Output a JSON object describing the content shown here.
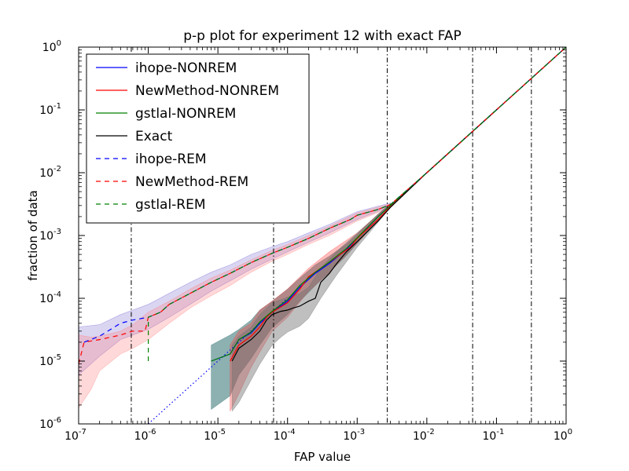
{
  "chart_data": {
    "type": "line",
    "title": "p-p plot for experiment 12 with exact FAP",
    "xlabel": "FAP value",
    "ylabel": "fraction of data",
    "xscale": "log",
    "yscale": "log",
    "xlim": [
      1e-07,
      1
    ],
    "ylim": [
      1e-06,
      1
    ],
    "x_ticks": [
      {
        "value": 1e-07,
        "base": "10",
        "exp": "-7"
      },
      {
        "value": 1e-06,
        "base": "10",
        "exp": "-6"
      },
      {
        "value": 1e-05,
        "base": "10",
        "exp": "-5"
      },
      {
        "value": 0.0001,
        "base": "10",
        "exp": "-4"
      },
      {
        "value": 0.001,
        "base": "10",
        "exp": "-3"
      },
      {
        "value": 0.01,
        "base": "10",
        "exp": "-2"
      },
      {
        "value": 0.1,
        "base": "10",
        "exp": "-1"
      },
      {
        "value": 1,
        "base": "10",
        "exp": "0"
      }
    ],
    "y_ticks": [
      {
        "value": 1e-06,
        "base": "10",
        "exp": "-6"
      },
      {
        "value": 1e-05,
        "base": "10",
        "exp": "-5"
      },
      {
        "value": 0.0001,
        "base": "10",
        "exp": "-4"
      },
      {
        "value": 0.001,
        "base": "10",
        "exp": "-3"
      },
      {
        "value": 0.01,
        "base": "10",
        "exp": "-2"
      },
      {
        "value": 0.1,
        "base": "10",
        "exp": "-1"
      },
      {
        "value": 1,
        "base": "10",
        "exp": "0"
      }
    ],
    "vertical_markers": [
      5.7e-07,
      6.3e-05,
      0.0027,
      0.0455,
      0.3173
    ],
    "legend_placement": "top-left",
    "series": [
      {
        "name": "ihope-NONREM",
        "color": "#0000ff",
        "dash": "solid",
        "x": [
          8e-06,
          1.5e-05,
          2e-05,
          3e-05,
          4e-05,
          6e-05,
          0.0001,
          0.00015,
          0.00025,
          0.0004,
          0.0007,
          0.001,
          0.002,
          0.003,
          0.01,
          0.1,
          1
        ],
        "y": [
          1e-05,
          1.3e-05,
          2.2e-05,
          2.8e-05,
          4e-05,
          6e-05,
          9e-05,
          0.00015,
          0.00025,
          0.00036,
          0.0006,
          0.0009,
          0.002,
          0.003,
          0.01,
          0.1,
          1
        ]
      },
      {
        "name": "NewMethod-NONREM",
        "color": "#ff0000",
        "dash": "solid",
        "x": [
          1.5e-05,
          2e-05,
          3e-05,
          4e-05,
          5e-05,
          6e-05,
          0.0001,
          0.00015,
          0.0002,
          0.0003,
          0.0005,
          0.0008,
          0.001,
          0.002,
          0.003,
          0.01,
          0.1,
          1
        ],
        "y": [
          1e-05,
          1.8e-05,
          2.5e-05,
          3.5e-05,
          5e-05,
          6e-05,
          8.5e-05,
          0.00014,
          0.00022,
          0.0003,
          0.00045,
          0.00065,
          0.0009,
          0.0018,
          0.0029,
          0.01,
          0.1,
          1
        ]
      },
      {
        "name": "gstlal-NONREM",
        "color": "#008000",
        "dash": "solid",
        "x": [
          8e-06,
          1.5e-05,
          2e-05,
          3e-05,
          4e-05,
          6e-05,
          0.0001,
          0.00015,
          0.00025,
          0.0004,
          0.0007,
          0.001,
          0.002,
          0.003,
          0.01,
          0.1,
          1
        ],
        "y": [
          1e-05,
          1.3e-05,
          2.2e-05,
          2.9e-05,
          4.2e-05,
          6.2e-05,
          9.5e-05,
          0.00016,
          0.00026,
          0.00038,
          0.00062,
          0.00092,
          0.002,
          0.003,
          0.01,
          0.1,
          1
        ]
      },
      {
        "name": "Exact",
        "color": "#000000",
        "dash": "solid",
        "x": [
          1.6e-05,
          2e-05,
          3e-05,
          4e-05,
          5e-05,
          6e-05,
          8e-05,
          0.0001,
          0.00012,
          0.00015,
          0.0002,
          0.00025,
          0.0003,
          0.0004,
          0.0005,
          0.0007,
          0.001,
          0.002,
          0.003,
          0.01,
          0.1,
          1
        ],
        "y": [
          1e-05,
          1.6e-05,
          2.2e-05,
          3e-05,
          4.5e-05,
          5.5e-05,
          6.2e-05,
          6.5e-05,
          7e-05,
          7.5e-05,
          9e-05,
          0.0001,
          0.00018,
          0.00025,
          0.00035,
          0.00055,
          0.0008,
          0.0017,
          0.0028,
          0.01,
          0.1,
          1
        ]
      },
      {
        "name": "ihope-REM",
        "color": "#0000ff",
        "dash": "dashed",
        "x": [
          1.2e-07,
          2e-07,
          4e-07,
          6e-07,
          1e-06,
          1.5e-06,
          2e-06,
          4e-06,
          8e-06,
          1.5e-05,
          3e-05,
          6e-05,
          0.0001,
          0.0002,
          0.0004,
          0.0008,
          0.001,
          0.002,
          0.003,
          0.01,
          0.1,
          1
        ],
        "y": [
          2e-05,
          2.5e-05,
          4e-05,
          4.5e-05,
          5e-05,
          6e-05,
          8e-05,
          0.00012,
          0.00018,
          0.00025,
          0.00037,
          0.00052,
          0.00065,
          0.0009,
          0.0013,
          0.0018,
          0.0021,
          0.0026,
          0.0031,
          0.01,
          0.1,
          1
        ]
      },
      {
        "name": "NewMethod-REM",
        "color": "#ff0000",
        "dash": "dashed",
        "x": [
          1e-07,
          1.2e-07,
          2e-07,
          4e-07,
          6e-07,
          9e-07,
          1e-06,
          1.5e-06,
          2e-06,
          4e-06,
          8e-06,
          1.5e-05,
          3e-05,
          6e-05,
          0.0001,
          0.0002,
          0.0004,
          0.0008,
          0.001,
          0.002,
          0.003,
          0.01,
          0.1,
          1
        ],
        "y": [
          9e-06,
          2e-05,
          2.2e-05,
          2.6e-05,
          3e-05,
          3e-05,
          5e-05,
          6e-05,
          8e-05,
          0.00012,
          0.00018,
          0.00025,
          0.00037,
          0.00052,
          0.00065,
          0.0009,
          0.0013,
          0.0018,
          0.0021,
          0.0026,
          0.0031,
          0.01,
          0.1,
          1
        ]
      },
      {
        "name": "gstlal-REM",
        "color": "#008000",
        "dash": "dashed",
        "x": [
          1e-06,
          1e-06,
          1.5e-06,
          2e-06,
          4e-06,
          8e-06,
          1.5e-05,
          3e-05,
          6e-05,
          0.0001,
          0.0002,
          0.0004,
          0.0008,
          0.001,
          0.002,
          0.003,
          0.01,
          0.1,
          1
        ],
        "y": [
          1e-05,
          5e-05,
          6e-05,
          8e-05,
          0.00012,
          0.00018,
          0.00025,
          0.00037,
          0.00052,
          0.00065,
          0.0009,
          0.0013,
          0.0018,
          0.0021,
          0.0026,
          0.0031,
          0.01,
          0.1,
          1
        ]
      }
    ],
    "unlabeled_series": [
      {
        "color": "#0000ff",
        "dash": "dotted",
        "x": [
          1e-06,
          2e-06,
          5e-06,
          1e-05,
          2e-05,
          5e-05,
          0.0001
        ],
        "y": [
          1e-06,
          2e-06,
          5e-06,
          1e-05,
          2e-05,
          5e-05,
          0.0001
        ]
      }
    ],
    "bands": [
      {
        "color": "#6a5acd",
        "opacity": 0.25,
        "x": [
          1e-07,
          2e-07,
          4e-07,
          6e-07,
          1e-06,
          2e-06,
          4e-06,
          8e-06,
          1.5e-05,
          3e-05,
          6e-05,
          0.0001,
          0.0002,
          0.0004,
          0.001,
          0.003
        ],
        "upper": [
          3.5e-05,
          3.8e-05,
          5.5e-05,
          6.5e-05,
          8e-05,
          0.00012,
          0.00018,
          0.00026,
          0.00034,
          0.0005,
          0.00066,
          0.0008,
          0.0011,
          0.0015,
          0.0024,
          0.0033
        ],
        "lower": [
          6e-06,
          1.2e-05,
          2.2e-05,
          2.6e-05,
          3.2e-05,
          5e-05,
          8e-05,
          0.00013,
          0.00019,
          0.00029,
          0.00042,
          0.00055,
          0.00078,
          0.0011,
          0.0018,
          0.0029
        ]
      },
      {
        "color": "#ff8080",
        "opacity": 0.3,
        "x": [
          1e-07,
          1.5e-07,
          2e-07,
          4e-07,
          6e-07,
          1e-06,
          2e-06,
          4e-06,
          8e-06,
          1.5e-05,
          3e-05,
          6e-05,
          0.0001,
          0.0002,
          0.0004,
          0.001,
          0.003
        ],
        "upper": [
          2.6e-05,
          2.4e-05,
          2.5e-05,
          3e-05,
          3.8e-05,
          6e-05,
          9e-05,
          0.00014,
          0.00021,
          0.00028,
          0.00041,
          0.00058,
          0.00072,
          0.001,
          0.0014,
          0.0023,
          0.0032
        ],
        "lower": [
          1.8e-06,
          3.5e-06,
          7e-06,
          1.3e-05,
          1.6e-05,
          2.2e-05,
          4e-05,
          7e-05,
          0.00011,
          0.00016,
          0.00026,
          0.00039,
          0.0005,
          0.00072,
          0.001,
          0.0017,
          0.0028
        ]
      },
      {
        "color": "#2f6f6f",
        "opacity": 0.55,
        "x": [
          8e-06,
          1.5e-05,
          2e-05,
          3e-05,
          4e-05,
          6e-05,
          0.0001,
          0.00015,
          0.00025,
          0.0004,
          0.0007,
          0.001,
          0.002,
          0.003
        ],
        "upper": [
          1.8e-05,
          2.6e-05,
          3.2e-05,
          4.5e-05,
          6.5e-05,
          9e-05,
          0.00014,
          0.00021,
          0.00034,
          0.00047,
          0.00073,
          0.00105,
          0.0022,
          0.0032
        ],
        "lower": [
          1.7e-06,
          2.8e-06,
          6e-06,
          1.1e-05,
          1.8e-05,
          3.4e-05,
          5.5e-05,
          9e-05,
          0.00016,
          0.00026,
          0.00048,
          0.00075,
          0.0018,
          0.0028
        ]
      },
      {
        "color": "#ff4040",
        "opacity": 0.35,
        "x": [
          1.5e-05,
          2e-05,
          3e-05,
          4e-05,
          6e-05,
          0.0001,
          0.0002,
          0.0004,
          0.001,
          0.003
        ],
        "upper": [
          1.8e-05,
          3e-05,
          4e-05,
          6.5e-05,
          9e-05,
          0.00014,
          0.0003,
          0.00055,
          0.0011,
          0.0032
        ],
        "lower": [
          1.6e-06,
          3e-06,
          8e-06,
          1.4e-05,
          3e-05,
          5e-05,
          0.00013,
          0.00026,
          0.00075,
          0.0028
        ]
      },
      {
        "color": "#707070",
        "opacity": 0.45,
        "x": [
          1.6e-05,
          2e-05,
          3e-05,
          4e-05,
          6e-05,
          8e-05,
          0.0001,
          0.00015,
          0.0002,
          0.0003,
          0.0005,
          0.001,
          0.003
        ],
        "upper": [
          1.8e-05,
          2.5e-05,
          3.5e-05,
          5.5e-05,
          8.5e-05,
          9.5e-05,
          0.000105,
          0.00012,
          0.00015,
          0.0003,
          0.00055,
          0.0011,
          0.0032
        ],
        "lower": [
          1.6e-06,
          2.2e-06,
          5e-06,
          9e-06,
          1.8e-05,
          2.4e-05,
          2.9e-05,
          3.6e-05,
          4.8e-05,
          0.0001,
          0.00023,
          0.00065,
          0.0028
        ]
      }
    ]
  }
}
